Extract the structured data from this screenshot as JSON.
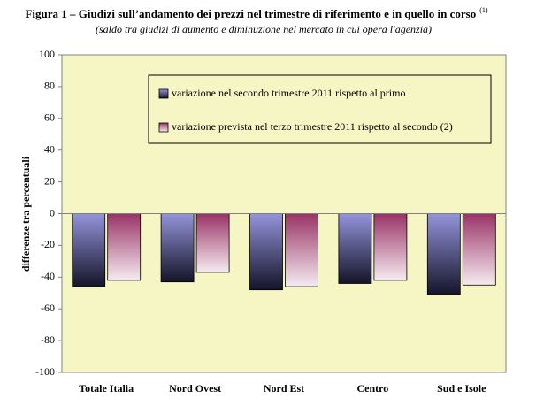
{
  "chart_data": {
    "type": "bar",
    "title": "Figura 1 – Giudizi sull’andamento dei prezzi nel trimestre di riferimento e in quello in corso",
    "title_note": "(1)",
    "subtitle": "(saldo tra giudizi di aumento e diminuzione nel mercato in cui opera l'agenzia)",
    "y_label": "differenze tra percentuali",
    "categories": [
      "Totale Italia",
      "Nord Ovest",
      "Nord Est",
      "Centro",
      "Sud e Isole"
    ],
    "series": [
      {
        "name": "variazione nel secondo trimestre 2011 rispetto al primo",
        "color": "#6666cc",
        "values": [
          -46,
          -43,
          -48,
          -44,
          -51
        ]
      },
      {
        "name": "variazione prevista nel terzo trimestre 2011 rispetto al secondo (2)",
        "color": "#993366",
        "values": [
          -42,
          -37,
          -46,
          -42,
          -45
        ]
      }
    ],
    "ylim": [
      -100,
      100
    ],
    "yticks": [
      -100,
      -80,
      -60,
      -40,
      -20,
      0,
      20,
      40,
      60,
      80,
      100
    ],
    "grid": false
  }
}
